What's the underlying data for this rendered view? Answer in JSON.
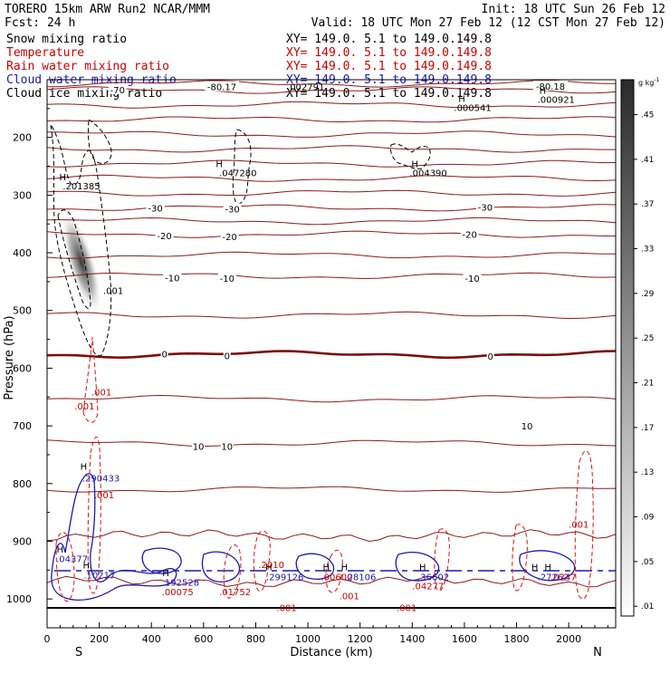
{
  "header": {
    "model": "TORERO  15km ARW   Run2    NCAR/MMM",
    "init": "Init: 18 UTC Sun 26 Feb 12",
    "fcst": "Fcst:   24 h",
    "valid": "Valid: 18 UTC Mon 27 Feb 12 (12 CST Mon 27 Feb 12)"
  },
  "fields": [
    {
      "name": "Snow mixing ratio",
      "xy": "XY= 149.0.  5.1 to 149.0.149.8",
      "color": "#000000"
    },
    {
      "name": "Temperature",
      "xy": "XY= 149.0.  5.1 to 149.0.149.8",
      "color": "#cc0000"
    },
    {
      "name": "Rain water mixing ratio",
      "xy": "XY= 149.0.  5.1 to 149.0.149.8",
      "color": "#cc0000"
    },
    {
      "name": "Cloud water mixing ratio",
      "xy": "XY= 149.0.  5.1 to 149.0.149.8",
      "color": "#1a1ab4"
    },
    {
      "name": "Cloud ice mixing ratio",
      "xy": "XY= 149.0.  5.1 to 149.0.149.8",
      "color": "#000000"
    }
  ],
  "colors": {
    "temperature": "#8b1a1a",
    "zero_isotherm": "#7a0f0f",
    "rain": "#dd1111",
    "cloud_water": "#1a1ab4",
    "snow": "#000000"
  },
  "chart_data": {
    "type": "cross-section",
    "xlabel": "Distance (km)",
    "ylabel": "Pressure (hPa)",
    "xlim": [
      0,
      2180
    ],
    "ylim": [
      1050,
      100
    ],
    "x_ticks": [
      0,
      200,
      400,
      600,
      800,
      1000,
      1200,
      1400,
      1600,
      1800,
      2000
    ],
    "y_ticks": [
      200,
      300,
      400,
      500,
      600,
      700,
      800,
      900,
      1000
    ],
    "direction_labels": {
      "left": "S",
      "right": "N"
    },
    "colorbar": {
      "unit_label": "g kg",
      "unit_exponent": "-1",
      "ticks": [
        ".01",
        ".05",
        ".09",
        ".13",
        ".17",
        ".21",
        ".25",
        ".29",
        ".33",
        ".37",
        ".41",
        ".45"
      ]
    },
    "temperature_contours": [
      {
        "value": -70,
        "pressure": 118
      },
      {
        "value": -30,
        "pressure": 322
      },
      {
        "value": -20,
        "pressure": 368
      },
      {
        "value": -10,
        "pressure": 440
      },
      {
        "value": 0,
        "pressure": 576
      },
      {
        "value": 10,
        "pressure": 730
      }
    ],
    "temperature_labels": [
      {
        "text": "-70",
        "x": 270,
        "p": 117
      },
      {
        "text": "-30",
        "x": 415,
        "p": 322
      },
      {
        "text": "-30",
        "x": 710,
        "p": 324
      },
      {
        "text": "-30",
        "x": 1680,
        "p": 321
      },
      {
        "text": "-20",
        "x": 450,
        "p": 370
      },
      {
        "text": "-20",
        "x": 700,
        "p": 372
      },
      {
        "text": "-20",
        "x": 1620,
        "p": 368
      },
      {
        "text": "-10",
        "x": 480,
        "p": 443
      },
      {
        "text": "-10",
        "x": 690,
        "p": 444
      },
      {
        "text": "-10",
        "x": 1630,
        "p": 444
      },
      {
        "text": "0",
        "x": 450,
        "p": 575
      },
      {
        "text": "0",
        "x": 690,
        "p": 578
      },
      {
        "text": "0",
        "x": 1700,
        "p": 579
      },
      {
        "text": "10",
        "x": 580,
        "p": 735
      },
      {
        "text": "10",
        "x": 690,
        "p": 735
      },
      {
        "text": "10",
        "x": 1840,
        "p": 700
      },
      {
        "text": "-80.17",
        "x": 670,
        "p": 112
      },
      {
        "text": "-80.18",
        "x": 1930,
        "p": 111
      }
    ],
    "maxima_labels": [
      {
        "text": ".201385",
        "x": 60,
        "p": 284,
        "color": "black"
      },
      {
        "text": ".047280",
        "x": 660,
        "p": 261,
        "color": "black"
      },
      {
        "text": ".004390",
        "x": 1390,
        "p": 261,
        "color": "black"
      },
      {
        "text": ".000541",
        "x": 1560,
        "p": 148,
        "color": "black"
      },
      {
        "text": ".000921",
        "x": 1880,
        "p": 134,
        "color": "black"
      },
      {
        "text": ".002791",
        "x": 920,
        "p": 112,
        "color": "black"
      },
      {
        "text": ".001",
        "x": 215,
        "p": 465,
        "color": "black"
      },
      {
        "text": ".290433",
        "x": 135,
        "p": 790,
        "color": "blue"
      },
      {
        "text": ".001",
        "x": 180,
        "p": 819,
        "color": "red"
      },
      {
        "text": ".04377",
        "x": 35,
        "p": 930,
        "color": "blue"
      },
      {
        "text": ".10217",
        "x": 140,
        "p": 958,
        "color": "blue"
      },
      {
        "text": ".192528",
        "x": 440,
        "p": 971,
        "color": "blue"
      },
      {
        "text": ".00075",
        "x": 440,
        "p": 987,
        "color": "red"
      },
      {
        "text": ".01752",
        "x": 660,
        "p": 987,
        "color": "red"
      },
      {
        "text": ".299126",
        "x": 840,
        "p": 961,
        "color": "blue"
      },
      {
        "text": ".2010",
        "x": 810,
        "p": 940,
        "color": "red"
      },
      {
        "text": ".00600",
        "x": 1050,
        "p": 961,
        "color": "red"
      },
      {
        "text": ".28106",
        "x": 1140,
        "p": 961,
        "color": "blue"
      },
      {
        "text": ".001",
        "x": 880,
        "p": 1015,
        "color": "red"
      },
      {
        "text": ".001",
        "x": 1120,
        "p": 994,
        "color": "red"
      },
      {
        "text": ".36602",
        "x": 1420,
        "p": 961,
        "color": "blue"
      },
      {
        "text": ".04277",
        "x": 1400,
        "p": 977,
        "color": "red"
      },
      {
        "text": ".001",
        "x": 1340,
        "p": 1015,
        "color": "red"
      },
      {
        "text": ".27262",
        "x": 1880,
        "p": 961,
        "color": "blue"
      },
      {
        "text": ".0247",
        "x": 1930,
        "p": 961,
        "color": "red"
      },
      {
        "text": ".001",
        "x": 2000,
        "p": 870,
        "color": "red"
      },
      {
        "text": ".001",
        "x": 170,
        "p": 641,
        "color": "red"
      },
      {
        "text": ".001",
        "x": 105,
        "p": 665,
        "color": "red"
      }
    ],
    "max_markers": [
      {
        "text": "H",
        "x": 60,
        "p": 268
      },
      {
        "text": "H",
        "x": 660,
        "p": 245
      },
      {
        "text": "H",
        "x": 1410,
        "p": 245
      },
      {
        "text": "H",
        "x": 1590,
        "p": 132
      },
      {
        "text": "H",
        "x": 1900,
        "p": 118
      },
      {
        "text": "H",
        "x": 140,
        "p": 770
      },
      {
        "text": "H",
        "x": 50,
        "p": 913
      },
      {
        "text": "H",
        "x": 150,
        "p": 941
      },
      {
        "text": "H",
        "x": 455,
        "p": 954
      },
      {
        "text": "H",
        "x": 850,
        "p": 944
      },
      {
        "text": "H",
        "x": 1070,
        "p": 944
      },
      {
        "text": "H",
        "x": 1140,
        "p": 944
      },
      {
        "text": "H",
        "x": 1440,
        "p": 944
      },
      {
        "text": "H",
        "x": 1870,
        "p": 944
      },
      {
        "text": "H",
        "x": 1920,
        "p": 944
      }
    ]
  }
}
